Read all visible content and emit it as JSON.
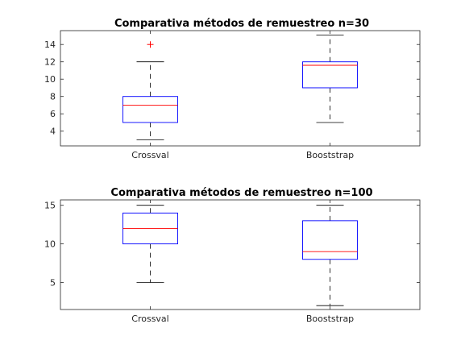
{
  "chart_data": [
    {
      "type": "box",
      "title": "Comparativa métodos de remuestreo n=30",
      "categories": [
        "Crossval",
        "Booststrap"
      ],
      "ylim": [
        2.3,
        15.6
      ],
      "yticks": [
        4,
        6,
        8,
        10,
        12,
        14
      ],
      "series": [
        {
          "category": "Crossval",
          "whisker_low": 3,
          "q1": 5,
          "median": 7,
          "q3": 8,
          "whisker_high": 12,
          "outliers": [
            14
          ]
        },
        {
          "category": "Booststrap",
          "whisker_low": 5,
          "q1": 9,
          "median": 11.6,
          "q3": 12,
          "whisker_high": 15.1,
          "outliers": []
        }
      ],
      "xlabel": "",
      "ylabel": "",
      "grid": false
    },
    {
      "type": "box",
      "title": "Comparativa métodos de remuestreo n=100",
      "categories": [
        "Crossval",
        "Booststrap"
      ],
      "ylim": [
        1.5,
        15.7
      ],
      "yticks": [
        5,
        10,
        15
      ],
      "series": [
        {
          "category": "Crossval",
          "whisker_low": 5,
          "q1": 10,
          "median": 12,
          "q3": 14,
          "whisker_high": 15,
          "outliers": []
        },
        {
          "category": "Booststrap",
          "whisker_low": 2,
          "q1": 8,
          "median": 9,
          "q3": 13,
          "whisker_high": 15,
          "outliers": []
        }
      ],
      "xlabel": "",
      "ylabel": "",
      "grid": false
    }
  ],
  "colors": {
    "box": "#0000ff",
    "median": "#ff0000",
    "outlier": "#ff0000",
    "whisker": "#000000",
    "axes": "#262626"
  }
}
